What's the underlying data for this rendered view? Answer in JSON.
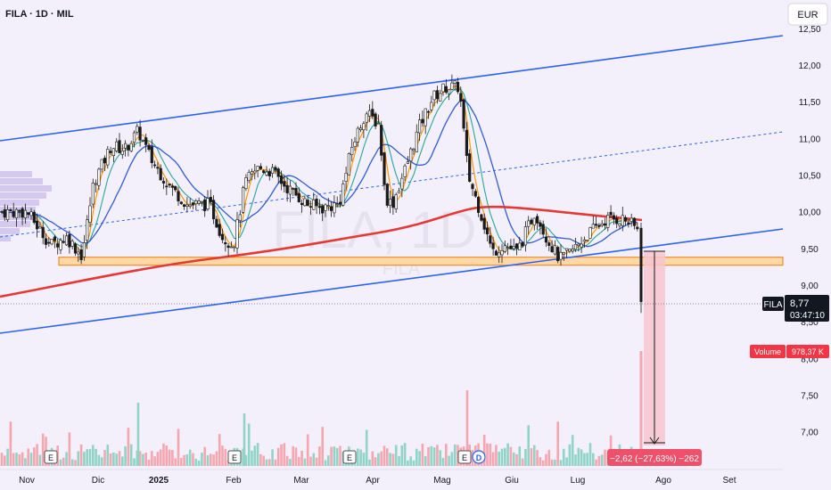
{
  "header": {
    "title": "FILA · 1D · MIL",
    "currency": "EUR"
  },
  "watermark": {
    "main": "FILA, 1D",
    "sub": "FILA"
  },
  "price_scale": {
    "labels": [
      "12,50",
      "12,00",
      "11,50",
      "11,00",
      "10,50",
      "10,00",
      "9,50",
      "9,00",
      "8,50",
      "8,00",
      "7,50",
      "7,00"
    ],
    "values": [
      12.5,
      12.0,
      11.5,
      11.0,
      10.5,
      10.0,
      9.5,
      9.0,
      8.5,
      8.0,
      7.5,
      7.0
    ]
  },
  "last_price": {
    "symbol": "FILA",
    "price": "8,77",
    "countdown": "03:47:10",
    "value": 8.77
  },
  "volume_badge": {
    "label": "Volume",
    "value": "978,37 K"
  },
  "measure": {
    "label": "−2,62 (−27,63%) −262"
  },
  "time_axis": {
    "labels": [
      "Nov",
      "Dic",
      "2025",
      "Feb",
      "Mar",
      "Apr",
      "Mag",
      "Giu",
      "Lug",
      "Ago",
      "Set"
    ]
  },
  "events": [
    "E",
    "E",
    "E",
    "E",
    "D"
  ],
  "colors": {
    "up": "#089981",
    "down": "#f23645",
    "channel": "#2962ff",
    "ma_red": "#e53935",
    "ma_blue": "#2f5bd6",
    "ema_orange": "#ff9800",
    "ema_teal": "#26a69a",
    "zone_fill": "#ffd39a",
    "zone_border": "#f57c00",
    "measure_fill": "#f7c5cf",
    "measure_label_bg": "#f0506a"
  },
  "chart_data": {
    "type": "candlestick",
    "symbol": "FILA",
    "interval": "1D",
    "exchange": "MIL",
    "currency": "EUR",
    "ylim": [
      6.8,
      12.65
    ],
    "last_price": 8.77,
    "support_zone": [
      9.27,
      9.38
    ],
    "measured_move": {
      "change": -2.62,
      "percent": -27.63,
      "ticks": -262
    },
    "volume_last": "978,37 K",
    "x_labels": [
      "Nov",
      "Dic",
      "2025",
      "Feb",
      "Mar",
      "Apr",
      "Mag",
      "Giu",
      "Lug",
      "Ago",
      "Set"
    ]
  }
}
